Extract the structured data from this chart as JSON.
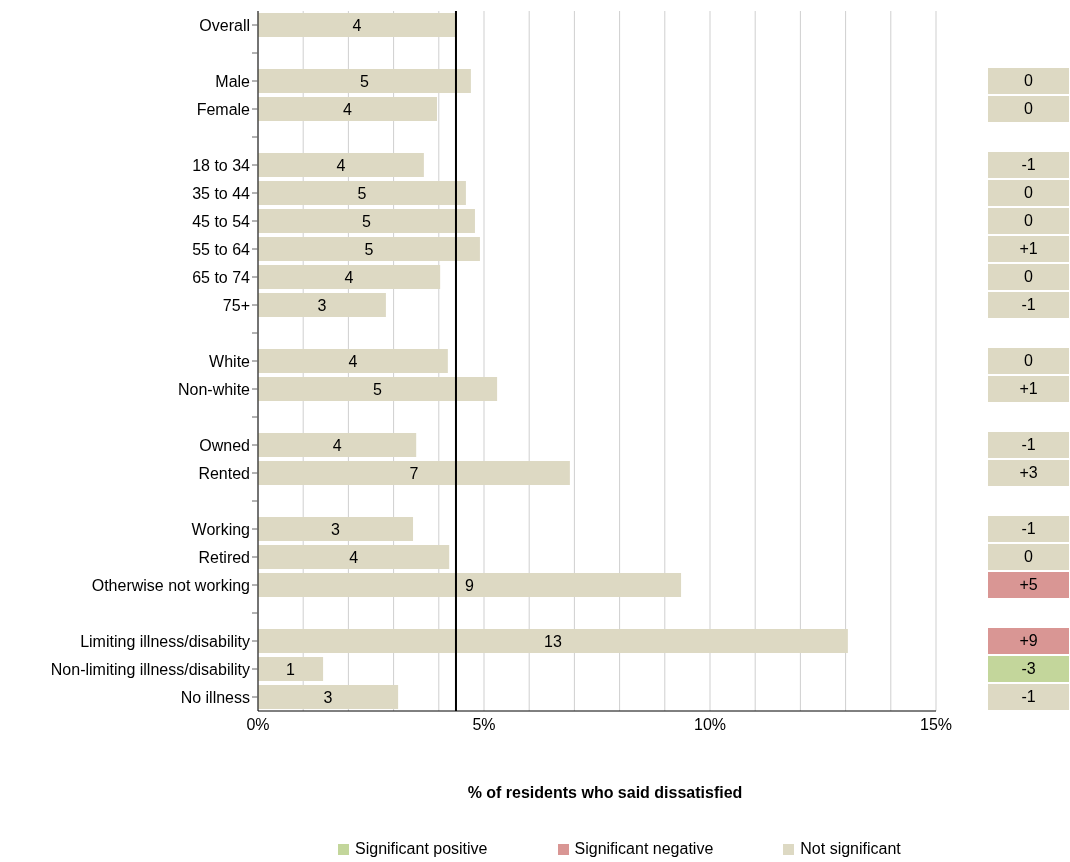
{
  "chart_data": [
    {
      "type": "bar",
      "orientation": "horizontal",
      "xlabel": "% of residents who said dissatisfied",
      "categories": [
        "Overall",
        null,
        "Male",
        "Female",
        null,
        "18 to 34",
        "35 to 44",
        "45 to 54",
        "55 to 64",
        "65 to 74",
        "75+",
        null,
        "White",
        "Non-white",
        null,
        "Owned",
        "Rented",
        null,
        "Working",
        "Retired",
        "Otherwise not working",
        null,
        "Limiting illness/disability",
        "Non-limiting illness/disability",
        "No illness"
      ],
      "values": [
        4.38,
        null,
        4.71,
        3.96,
        null,
        3.67,
        4.6,
        4.8,
        4.91,
        4.03,
        2.83,
        null,
        4.2,
        5.29,
        null,
        3.5,
        6.9,
        null,
        3.43,
        4.23,
        9.36,
        null,
        13.05,
        1.44,
        3.1
      ],
      "value_labels": [
        "4",
        null,
        "5",
        "4",
        null,
        "4",
        "5",
        "5",
        "5",
        "4",
        "3",
        null,
        "4",
        "5",
        null,
        "4",
        "7",
        null,
        "3",
        "4",
        "9",
        null,
        "13",
        "1",
        "3"
      ],
      "color": "#ddd9c3",
      "xlim": [
        0,
        15
      ],
      "xticks": [
        {
          "value": 0,
          "label": "0%"
        },
        {
          "value": 1,
          "label": null
        },
        {
          "value": 2,
          "label": null
        },
        {
          "value": 3,
          "label": null
        },
        {
          "value": 4,
          "label": null
        },
        {
          "value": 5,
          "label": "5%"
        },
        {
          "value": 6,
          "label": null
        },
        {
          "value": 7,
          "label": null
        },
        {
          "value": 8,
          "label": null
        },
        {
          "value": 9,
          "label": null
        },
        {
          "value": 10,
          "label": "10%"
        },
        {
          "value": 11,
          "label": null
        },
        {
          "value": 12,
          "label": null
        },
        {
          "value": 13,
          "label": null
        },
        {
          "value": 14,
          "label": null
        },
        {
          "value": 15,
          "label": "15%"
        }
      ],
      "grid": "x",
      "ref_lines": [
        {
          "axis": "x",
          "value": 4.38,
          "color": "#000000"
        }
      ]
    },
    {
      "type": "other",
      "categories": [
        null,
        null,
        null,
        null,
        null,
        null,
        null,
        null,
        null,
        null,
        null,
        null,
        null,
        null,
        null,
        null,
        null,
        null,
        null,
        null,
        null,
        null,
        null,
        null,
        null
      ],
      "values": [
        null,
        null,
        0,
        0,
        null,
        -1,
        0,
        0,
        1,
        0,
        -1,
        null,
        0,
        1,
        null,
        -1,
        3,
        null,
        -1,
        0,
        5,
        null,
        9,
        -3,
        -1
      ],
      "value_labels": [
        null,
        null,
        "0",
        "0",
        null,
        "-1",
        "0",
        "0",
        "+1",
        "0",
        "-1",
        null,
        "0",
        "+1",
        null,
        "-1",
        "+3",
        null,
        "-1",
        "0",
        "+5",
        null,
        "+9",
        "-3",
        "-1"
      ],
      "colors": [
        null,
        null,
        "#ddd9c3",
        "#ddd9c3",
        null,
        "#ddd9c3",
        "#ddd9c3",
        "#ddd9c3",
        "#ddd9c3",
        "#ddd9c3",
        "#ddd9c3",
        null,
        "#ddd9c3",
        "#ddd9c3",
        null,
        "#ddd9c3",
        "#ddd9c3",
        null,
        "#ddd9c3",
        "#ddd9c3",
        "#d99694",
        null,
        "#d99694",
        "#c3d69b",
        "#ddd9c3"
      ],
      "annotations": [
        "Significant positive",
        "Significant negative",
        "Not significant"
      ]
    }
  ]
}
